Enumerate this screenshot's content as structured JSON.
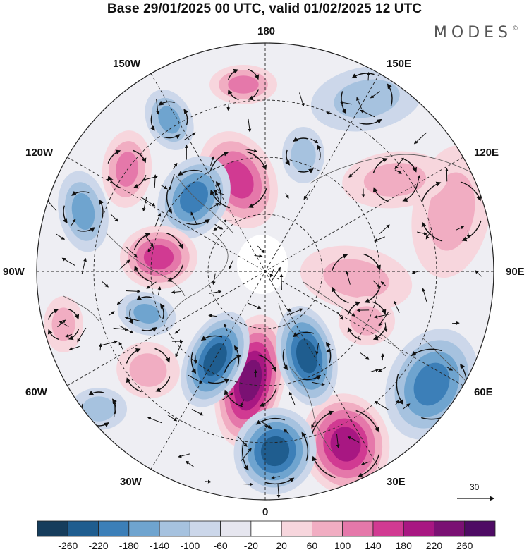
{
  "title": "Base 29/01/2025 00 UTC, valid 01/02/2025 12 UTC",
  "brand": "MODES",
  "brand_mark": "©",
  "longitude_labels": {
    "top": "180",
    "bottom": "0",
    "left": "90W",
    "right": "90E",
    "upper_left_1": "150W",
    "upper_left_2": "120W",
    "lower_left_1": "60W",
    "lower_left_2": "30W",
    "upper_right_1": "150E",
    "upper_right_2": "120E",
    "lower_right_1": "60E",
    "lower_right_2": "30E"
  },
  "reference_vector": {
    "value": "30"
  },
  "colorbar": {
    "labels": [
      "-260",
      "-220",
      "-180",
      "-140",
      "-100",
      "-60",
      "-20",
      "20",
      "60",
      "100",
      "140",
      "180",
      "220",
      "260"
    ],
    "colors": [
      "#163d5c",
      "#1f5d8f",
      "#3c7fb8",
      "#6fa4cf",
      "#a6c2df",
      "#ccd7ea",
      "#e6e6ef",
      "#ffffff",
      "#f7d6dd",
      "#f1adc2",
      "#e578aa",
      "#d13a92",
      "#a81782",
      "#7a1173",
      "#4e0b64"
    ]
  },
  "map": {
    "projection": "north-polar-stereographic",
    "field": "anomaly",
    "arrows": "wind-vectors",
    "dashed_graticule": true
  }
}
